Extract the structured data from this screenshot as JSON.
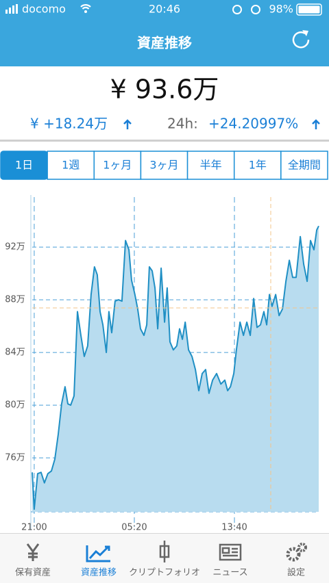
{
  "status_bar": {
    "carrier": "docomo",
    "time": "20:46",
    "battery": "98%"
  },
  "header": {
    "title": "資産推移"
  },
  "summary": {
    "total": "¥ 93.6万",
    "change": "¥ +18.24万",
    "change_24h_label": "24h:",
    "change_24h": "+24.20997%"
  },
  "tabs": [
    "1日",
    "1週",
    "1ヶ月",
    "3ヶ月",
    "半年",
    "1年",
    "全期間"
  ],
  "chart_data": {
    "type": "area",
    "color": "#1f8fc4",
    "x": [
      -10,
      0,
      17,
      34,
      51,
      68,
      86,
      103,
      120,
      137,
      154,
      168,
      182,
      199,
      216,
      233,
      250,
      267,
      284,
      301,
      315,
      329,
      343,
      360,
      373,
      387,
      404,
      421,
      438,
      456,
      473,
      486,
      503,
      517,
      531,
      548,
      562,
      575,
      589,
      603,
      617,
      634,
      651,
      664,
      678,
      695,
      712,
      726,
      740,
      754,
      771,
      788,
      805,
      822,
      839,
      856,
      873,
      891,
      911,
      932,
      952,
      966,
      980,
      997,
      1010,
      1028,
      1045,
      1062,
      1079,
      1096,
      1113,
      1130,
      1147,
      1161,
      1175,
      1188,
      1206,
      1223,
      1240,
      1257,
      1274,
      1291,
      1308,
      1329,
      1346,
      1363,
      1380,
      1397,
      1411,
      1421
    ],
    "values": [
      74.9,
      72.1,
      74.8,
      74.9,
      74.1,
      74.8,
      75.0,
      75.9,
      77.8,
      80.1,
      81.4,
      80.1,
      80.0,
      80.7,
      87.1,
      85.3,
      83.7,
      84.5,
      88.4,
      90.5,
      89.9,
      87.1,
      86.1,
      84.0,
      87.1,
      85.5,
      87.9,
      88.0,
      87.9,
      92.5,
      91.8,
      89.5,
      88.4,
      87.3,
      85.8,
      85.3,
      86.1,
      90.5,
      90.2,
      88.9,
      85.8,
      90.4,
      86.3,
      88.9,
      84.8,
      84.2,
      84.5,
      85.8,
      85.0,
      86.3,
      84.2,
      83.7,
      82.7,
      81.1,
      82.4,
      82.7,
      80.9,
      81.9,
      82.4,
      81.6,
      81.9,
      81.1,
      81.4,
      82.4,
      84.2,
      86.3,
      85.3,
      86.3,
      85.3,
      88.1,
      85.9,
      86.1,
      87.1,
      86.1,
      88.4,
      87.5,
      88.4,
      86.8,
      87.3,
      89.4,
      91.0,
      89.7,
      89.7,
      92.8,
      90.7,
      89.4,
      92.5,
      91.8,
      93.3,
      93.6
    ],
    "xlim": [
      -10,
      1421
    ],
    "xticks": [
      {
        "value": 0,
        "label": "21:00"
      },
      {
        "value": 500,
        "label": "05:20"
      },
      {
        "value": 1000,
        "label": "13:40"
      }
    ],
    "ylim": [
      71.9,
      95.8
    ],
    "yticks": [
      {
        "value": 76,
        "label": "76万"
      },
      {
        "value": 80,
        "label": "80万"
      },
      {
        "value": 84,
        "label": "84万"
      },
      {
        "value": 88,
        "label": "88万"
      },
      {
        "value": 92,
        "label": "92万"
      }
    ],
    "grid": true
  },
  "nav": [
    "保有資産",
    "資産推移",
    "クリプトフォリオ",
    "ニュース",
    "設定"
  ]
}
